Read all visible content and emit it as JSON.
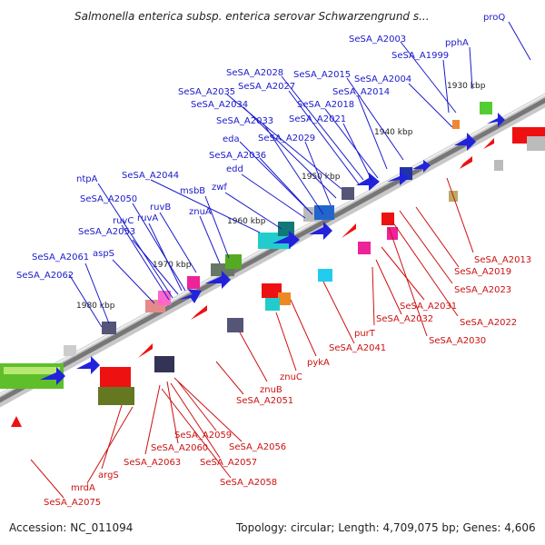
{
  "title": "Salmonella enterica subsp. enterica serovar Schwarzengrund s...",
  "footer": {
    "accession": "Accession: NC_011094",
    "summary": "Topology: circular; Length: 4,709,075 bp; Genes: 4,606"
  },
  "colors": {
    "forward_label": "#1a1acc",
    "reverse_label": "#cc1111",
    "backbone": "#8a8a8a"
  },
  "kbp_markers": [
    "1930 kbp",
    "1940 kbp",
    "1950 kbp",
    "1960 kbp",
    "1970 kbp",
    "1980 kbp"
  ],
  "forward_genes": [
    "proQ",
    "SeSA_A2003",
    "pphA",
    "SeSA_A1999",
    "SeSA_A2004",
    "SeSA_A2015",
    "SeSA_A2028",
    "SeSA_A2027",
    "SeSA_A2014",
    "SeSA_A2035",
    "SeSA_A2018",
    "SeSA_A2034",
    "SeSA_A2021",
    "SeSA_A2033",
    "eda",
    "SeSA_A2029",
    "SeSA_A2036",
    "edd",
    "SeSA_A2044",
    "zwf",
    "msbB",
    "ntpA",
    "SeSA_A2050",
    "ruvB",
    "znuA",
    "ruvC",
    "ruvA",
    "SeSA_A2053",
    "aspS",
    "SeSA_A2061",
    "SeSA_A2062"
  ],
  "reverse_genes": [
    "SeSA_A2013",
    "SeSA_A2019",
    "SeSA_A2023",
    "SeSA_A2031",
    "SeSA_A2022",
    "SeSA_A2032",
    "SeSA_A2030",
    "purT",
    "SeSA_A2041",
    "pykA",
    "znuC",
    "znuB",
    "SeSA_A2051",
    "SeSA_A2059",
    "SeSA_A2056",
    "SeSA_A2060",
    "SeSA_A2057",
    "SeSA_A2063",
    "SeSA_A2058",
    "mrdA",
    "argS",
    "SeSA_A2075"
  ]
}
